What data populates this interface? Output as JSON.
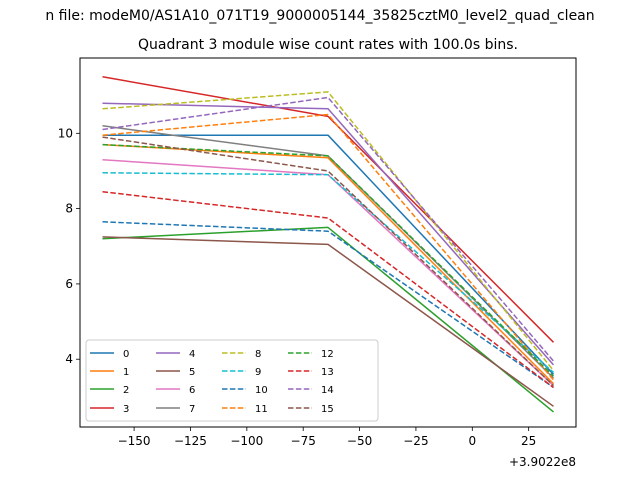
{
  "figure": {
    "suptitle": "n file: modeM0/AS1A10_071T19_9000005144_35825cztM0_level2_quad_clean",
    "title": "Quadrant 3 module wise count rates with 100.0s bins.",
    "x_offset_label": "+3.9022e8"
  },
  "chart_data": {
    "type": "line",
    "title": "Quadrant 3 module wise count rates with 100.0s bins.",
    "xlabel": "",
    "ylabel": "",
    "x_offset": 390220000,
    "x": [
      -164,
      -64,
      36
    ],
    "xlim": [
      -164,
      36
    ],
    "ylim": [
      2.2,
      12.0
    ],
    "xticks": [
      -150,
      -125,
      -100,
      -75,
      -50,
      -25,
      0,
      25
    ],
    "xtick_labels": [
      "−150",
      "−125",
      "−100",
      "−75",
      "−50",
      "−25",
      "0",
      "25"
    ],
    "yticks": [
      4,
      6,
      8,
      10
    ],
    "ytick_labels": [
      "4",
      "6",
      "8",
      "10"
    ],
    "legend_position": "lower-left",
    "series": [
      {
        "name": "0",
        "values": [
          9.95,
          9.95,
          3.6
        ],
        "color": "#1f77b4",
        "dash": "solid"
      },
      {
        "name": "1",
        "values": [
          9.7,
          9.35,
          3.35
        ],
        "color": "#ff7f0e",
        "dash": "solid"
      },
      {
        "name": "2",
        "values": [
          7.2,
          7.5,
          2.6
        ],
        "color": "#2ca02c",
        "dash": "solid"
      },
      {
        "name": "3",
        "values": [
          11.5,
          10.45,
          4.45
        ],
        "color": "#d62728",
        "dash": "solid"
      },
      {
        "name": "4",
        "values": [
          10.8,
          10.65,
          3.85
        ],
        "color": "#9467bd",
        "dash": "solid"
      },
      {
        "name": "5",
        "values": [
          7.25,
          7.05,
          2.75
        ],
        "color": "#8c564b",
        "dash": "solid"
      },
      {
        "name": "6",
        "values": [
          9.3,
          8.9,
          3.3
        ],
        "color": "#e377c2",
        "dash": "solid"
      },
      {
        "name": "7",
        "values": [
          10.2,
          9.4,
          3.5
        ],
        "color": "#7f7f7f",
        "dash": "solid"
      },
      {
        "name": "8",
        "values": [
          10.65,
          11.1,
          3.7
        ],
        "color": "#bcbd22",
        "dash": "dashed"
      },
      {
        "name": "9",
        "values": [
          8.95,
          8.9,
          3.65
        ],
        "color": "#17becf",
        "dash": "dashed"
      },
      {
        "name": "10",
        "values": [
          7.65,
          7.4,
          3.25
        ],
        "color": "#1f77b4",
        "dash": "dashed"
      },
      {
        "name": "11",
        "values": [
          9.95,
          10.5,
          3.45
        ],
        "color": "#ff7f0e",
        "dash": "dashed"
      },
      {
        "name": "12",
        "values": [
          9.7,
          9.4,
          3.55
        ],
        "color": "#2ca02c",
        "dash": "dashed"
      },
      {
        "name": "13",
        "values": [
          8.45,
          7.75,
          3.25
        ],
        "color": "#d62728",
        "dash": "dashed"
      },
      {
        "name": "14",
        "values": [
          10.1,
          10.95,
          3.95
        ],
        "color": "#9467bd",
        "dash": "dashed"
      },
      {
        "name": "15",
        "values": [
          9.9,
          9.0,
          3.3
        ],
        "color": "#8c564b",
        "dash": "dashed"
      }
    ]
  }
}
